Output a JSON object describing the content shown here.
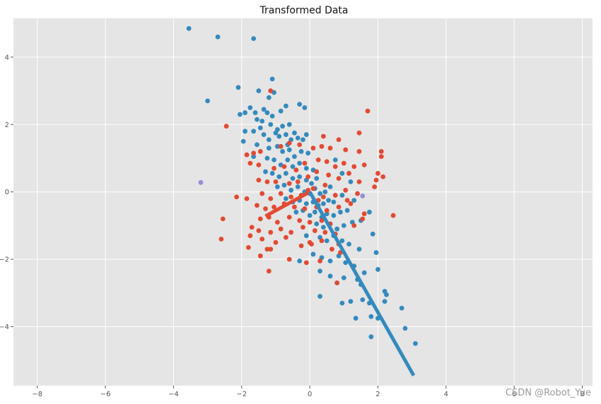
{
  "chart_data": {
    "type": "scatter",
    "title": "Transformed Data",
    "xlabel": "",
    "ylabel": "",
    "xlim": [
      -8.7,
      8.3
    ],
    "ylim": [
      -5.75,
      5.15
    ],
    "xticks": [
      -8,
      -6,
      -4,
      -2,
      0,
      2,
      4,
      6,
      8
    ],
    "yticks": [
      -4,
      -2,
      0,
      2,
      4
    ],
    "xtick_labels": [
      "−8",
      "−6",
      "−4",
      "−2",
      "0",
      "2",
      "4",
      "6",
      "8"
    ],
    "ytick_labels": [
      "−4",
      "−2",
      "0",
      "2",
      "4"
    ],
    "grid": true,
    "colors": {
      "background": "#e5e5e5",
      "grid": "#ffffff",
      "red": "#e24a33",
      "blue": "#348abd",
      "purple": "#988ed5"
    },
    "series": [
      {
        "color": "#348abd",
        "points": [
          [
            -3.55,
            4.85
          ],
          [
            -2.7,
            4.6
          ],
          [
            -1.65,
            4.55
          ],
          [
            -3.0,
            2.7
          ],
          [
            -2.1,
            3.1
          ],
          [
            -1.1,
            3.35
          ],
          [
            -1.5,
            3.0
          ],
          [
            -1.2,
            2.8
          ],
          [
            -1.05,
            2.95
          ],
          [
            -1.75,
            2.5
          ],
          [
            -1.6,
            2.35
          ],
          [
            -1.35,
            2.45
          ],
          [
            -1.25,
            2.35
          ],
          [
            -1.1,
            2.25
          ],
          [
            -0.85,
            2.4
          ],
          [
            -0.7,
            2.55
          ],
          [
            -0.3,
            2.6
          ],
          [
            -0.15,
            2.5
          ],
          [
            -2.05,
            2.3
          ],
          [
            -1.9,
            2.35
          ],
          [
            -1.55,
            2.15
          ],
          [
            -1.4,
            2.1
          ],
          [
            -1.15,
            2.0
          ],
          [
            -0.95,
            1.85
          ],
          [
            -0.8,
            1.95
          ],
          [
            -0.6,
            2.0
          ],
          [
            -0.45,
            1.75
          ],
          [
            -0.1,
            1.7
          ],
          [
            -1.9,
            1.8
          ],
          [
            -1.65,
            1.8
          ],
          [
            -1.35,
            1.7
          ],
          [
            -1.2,
            1.55
          ],
          [
            -0.9,
            1.65
          ],
          [
            -0.7,
            1.7
          ],
          [
            -0.55,
            1.55
          ],
          [
            -0.35,
            1.6
          ],
          [
            -0.2,
            1.55
          ],
          [
            -1.95,
            1.5
          ],
          [
            -1.55,
            1.4
          ],
          [
            -1.2,
            1.3
          ],
          [
            -0.95,
            1.35
          ],
          [
            -0.8,
            1.2
          ],
          [
            -0.6,
            1.25
          ],
          [
            -0.45,
            1.05
          ],
          [
            -0.25,
            1.2
          ],
          [
            -0.05,
            1.15
          ],
          [
            -1.65,
            1.05
          ],
          [
            -1.25,
            1.0
          ],
          [
            -1.05,
            0.95
          ],
          [
            -0.85,
            0.8
          ],
          [
            -0.65,
            0.95
          ],
          [
            -0.5,
            0.75
          ],
          [
            -0.3,
            0.85
          ],
          [
            -0.1,
            0.7
          ],
          [
            0.1,
            0.65
          ],
          [
            -1.3,
            0.6
          ],
          [
            -1.1,
            0.55
          ],
          [
            -0.9,
            0.45
          ],
          [
            -0.7,
            0.55
          ],
          [
            -0.5,
            0.4
          ],
          [
            -0.3,
            0.45
          ],
          [
            -0.1,
            0.35
          ],
          [
            0.05,
            0.25
          ],
          [
            0.2,
            0.4
          ],
          [
            -0.95,
            0.15
          ],
          [
            -0.75,
            0.2
          ],
          [
            -0.55,
            0.05
          ],
          [
            -0.35,
            0.15
          ],
          [
            -0.15,
            0.0
          ],
          [
            0.0,
            -0.05
          ],
          [
            0.15,
            0.1
          ],
          [
            0.3,
            -0.05
          ],
          [
            0.45,
            0.0
          ],
          [
            -0.7,
            -0.2
          ],
          [
            -0.5,
            -0.3
          ],
          [
            -0.3,
            -0.25
          ],
          [
            -0.1,
            -0.35
          ],
          [
            0.1,
            -0.3
          ],
          [
            0.25,
            -0.4
          ],
          [
            0.4,
            -0.35
          ],
          [
            0.55,
            -0.25
          ],
          [
            0.7,
            -0.3
          ],
          [
            -0.4,
            -0.6
          ],
          [
            -0.2,
            -0.55
          ],
          [
            0.0,
            -0.7
          ],
          [
            0.15,
            -0.6
          ],
          [
            0.35,
            -0.75
          ],
          [
            0.5,
            -0.65
          ],
          [
            0.7,
            -0.7
          ],
          [
            0.9,
            -0.6
          ],
          [
            1.1,
            -0.55
          ],
          [
            0.2,
            -0.95
          ],
          [
            0.4,
            -1.05
          ],
          [
            0.6,
            -0.95
          ],
          [
            0.8,
            -1.1
          ],
          [
            1.0,
            -1.0
          ],
          [
            1.25,
            -0.9
          ],
          [
            1.5,
            -0.85
          ],
          [
            1.75,
            -0.6
          ],
          [
            -0.1,
            -1.3
          ],
          [
            0.3,
            -1.35
          ],
          [
            0.5,
            -1.45
          ],
          [
            0.7,
            -1.3
          ],
          [
            0.95,
            -1.45
          ],
          [
            1.15,
            -1.55
          ],
          [
            1.45,
            -1.7
          ],
          [
            1.95,
            -1.8
          ],
          [
            0.1,
            -1.85
          ],
          [
            0.35,
            -1.95
          ],
          [
            0.6,
            -2.05
          ],
          [
            0.85,
            -1.9
          ],
          [
            1.05,
            -2.1
          ],
          [
            1.3,
            -2.2
          ],
          [
            1.6,
            -2.4
          ],
          [
            -0.3,
            -2.05
          ],
          [
            0.3,
            -2.35
          ],
          [
            0.6,
            -2.5
          ],
          [
            0.8,
            -2.7
          ],
          [
            1.0,
            -2.55
          ],
          [
            1.4,
            -2.6
          ],
          [
            1.5,
            -2.75
          ],
          [
            0.3,
            -3.1
          ],
          [
            0.95,
            -3.3
          ],
          [
            1.2,
            -3.25
          ],
          [
            1.55,
            -3.2
          ],
          [
            1.75,
            -3.3
          ],
          [
            2.2,
            -2.95
          ],
          [
            2.25,
            -3.05
          ],
          [
            2.2,
            -3.25
          ],
          [
            1.35,
            -3.75
          ],
          [
            1.8,
            -3.7
          ],
          [
            2.0,
            -3.75
          ],
          [
            2.7,
            -3.45
          ],
          [
            2.8,
            -4.05
          ],
          [
            1.8,
            -4.3
          ],
          [
            3.1,
            -4.5
          ],
          [
            1.85,
            -1.25
          ],
          [
            2.0,
            -2.3
          ],
          [
            0.75,
            0.95
          ],
          [
            0.95,
            0.55
          ],
          [
            1.2,
            0.3
          ],
          [
            0.6,
            0.15
          ],
          [
            0.95,
            -0.1
          ],
          [
            1.3,
            -0.25
          ],
          [
            -1.45,
            1.9
          ],
          [
            -1.0,
            1.75
          ],
          [
            -0.65,
            1.4
          ]
        ]
      },
      {
        "color": "#e24a33",
        "points": [
          [
            -1.15,
            3.0
          ],
          [
            1.7,
            2.4
          ],
          [
            -2.45,
            1.95
          ],
          [
            1.45,
            1.75
          ],
          [
            0.4,
            1.65
          ],
          [
            -0.6,
            1.45
          ],
          [
            -1.65,
            1.15
          ],
          [
            -1.85,
            1.1
          ],
          [
            -1.45,
            1.2
          ],
          [
            -0.85,
            1.35
          ],
          [
            -0.3,
            1.4
          ],
          [
            0.1,
            1.3
          ],
          [
            0.35,
            1.35
          ],
          [
            0.6,
            1.3
          ],
          [
            0.85,
            1.55
          ],
          [
            1.05,
            1.25
          ],
          [
            1.45,
            1.2
          ],
          [
            2.1,
            1.2
          ],
          [
            2.1,
            1.05
          ],
          [
            -1.75,
            0.85
          ],
          [
            -1.5,
            0.8
          ],
          [
            -1.05,
            0.7
          ],
          [
            -0.75,
            0.75
          ],
          [
            -0.4,
            0.65
          ],
          [
            -0.15,
            0.85
          ],
          [
            0.25,
            0.95
          ],
          [
            0.5,
            0.9
          ],
          [
            0.75,
            0.75
          ],
          [
            1.0,
            0.85
          ],
          [
            1.3,
            0.75
          ],
          [
            1.6,
            0.8
          ],
          [
            2.0,
            0.55
          ],
          [
            -1.5,
            0.35
          ],
          [
            -1.25,
            0.3
          ],
          [
            -1.0,
            0.3
          ],
          [
            -0.6,
            0.25
          ],
          [
            -0.35,
            0.3
          ],
          [
            -0.05,
            0.45
          ],
          [
            0.2,
            0.6
          ],
          [
            0.55,
            0.5
          ],
          [
            0.85,
            0.4
          ],
          [
            1.15,
            0.55
          ],
          [
            1.45,
            0.3
          ],
          [
            1.95,
            0.35
          ],
          [
            2.15,
            0.45
          ],
          [
            -2.15,
            -0.15
          ],
          [
            -1.85,
            -0.2
          ],
          [
            -1.4,
            -0.05
          ],
          [
            -1.15,
            -0.2
          ],
          [
            -0.85,
            -0.05
          ],
          [
            -0.55,
            -0.15
          ],
          [
            -0.25,
            -0.1
          ],
          [
            0.1,
            0.1
          ],
          [
            0.4,
            -0.15
          ],
          [
            0.75,
            -0.1
          ],
          [
            1.05,
            0.05
          ],
          [
            1.4,
            -0.05
          ],
          [
            1.9,
            0.15
          ],
          [
            -1.55,
            -0.4
          ],
          [
            -1.3,
            -0.5
          ],
          [
            -1.05,
            -0.45
          ],
          [
            -0.75,
            -0.35
          ],
          [
            -0.45,
            -0.45
          ],
          [
            -0.15,
            -0.5
          ],
          [
            0.2,
            -0.45
          ],
          [
            0.5,
            -0.55
          ],
          [
            0.85,
            -0.45
          ],
          [
            1.2,
            -0.35
          ],
          [
            1.6,
            -0.65
          ],
          [
            2.45,
            -0.7
          ],
          [
            -2.55,
            -0.8
          ],
          [
            -1.45,
            -0.8
          ],
          [
            -1.2,
            -0.75
          ],
          [
            -0.95,
            -0.9
          ],
          [
            -0.6,
            -0.75
          ],
          [
            -0.3,
            -0.85
          ],
          [
            0.0,
            -0.9
          ],
          [
            0.35,
            -0.85
          ],
          [
            0.6,
            -0.95
          ],
          [
            1.3,
            -1.0
          ],
          [
            1.55,
            -0.8
          ],
          [
            -1.7,
            -1.05
          ],
          [
            -1.5,
            -1.15
          ],
          [
            -1.15,
            -1.2
          ],
          [
            -0.85,
            -1.1
          ],
          [
            -0.55,
            -1.2
          ],
          [
            -0.2,
            -1.05
          ],
          [
            0.15,
            -1.15
          ],
          [
            0.45,
            -1.2
          ],
          [
            0.75,
            -1.25
          ],
          [
            -2.6,
            -1.4
          ],
          [
            -1.75,
            -1.3
          ],
          [
            -1.4,
            -1.4
          ],
          [
            -1.0,
            -1.5
          ],
          [
            -0.7,
            -1.35
          ],
          [
            0.0,
            -1.5
          ],
          [
            0.85,
            -1.55
          ],
          [
            -1.25,
            -1.7
          ],
          [
            -0.25,
            -1.6
          ],
          [
            0.05,
            -1.55
          ],
          [
            0.35,
            -1.45
          ],
          [
            -1.8,
            -1.65
          ],
          [
            -1.45,
            -1.9
          ],
          [
            -1.15,
            -1.7
          ],
          [
            -0.6,
            -2.0
          ],
          [
            0.65,
            -1.7
          ],
          [
            0.9,
            -1.8
          ],
          [
            -0.1,
            -2.1
          ],
          [
            -1.2,
            -2.35
          ],
          [
            0.3,
            -2.05
          ],
          [
            0.8,
            -2.7
          ],
          [
            1.1,
            -0.25
          ],
          [
            0.45,
            0.2
          ],
          [
            -0.05,
            0.05
          ],
          [
            0.25,
            -0.25
          ]
        ]
      },
      {
        "color": "#988ed5",
        "points": [
          [
            -3.2,
            0.28
          ],
          [
            1.55,
            -0.12
          ]
        ]
      }
    ],
    "vectors": [
      {
        "color": "#e24a33",
        "from": [
          0.0,
          0.0
        ],
        "to": [
          -1.3,
          -0.72
        ]
      },
      {
        "color": "#348abd",
        "from": [
          0.0,
          0.0
        ],
        "to": [
          3.05,
          -5.45
        ]
      }
    ]
  },
  "watermark": "CSDN @Robot_Yue"
}
